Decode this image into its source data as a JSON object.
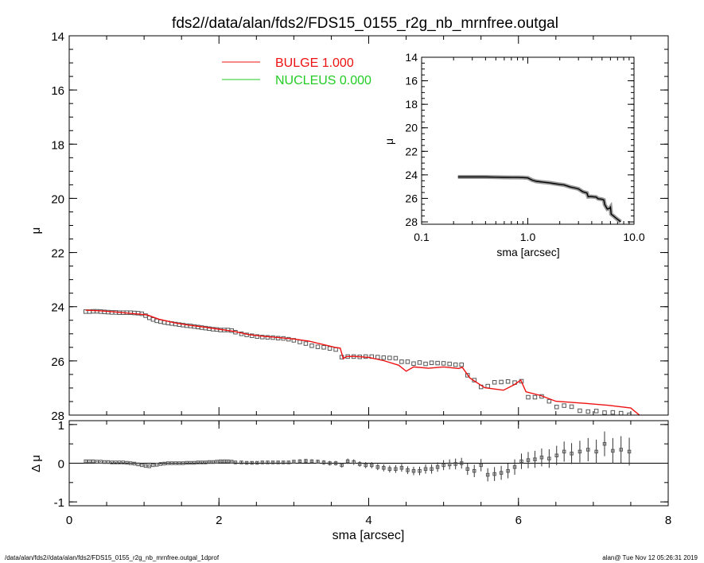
{
  "title": "fds2//data/alan/fds2/FDS15_0155_r2g_nb_mrnfree.outgal",
  "footer": {
    "left": "/data/alan/fds2//data/alan/fds2/FDS15_0155_r2g_nb_mrnfree.outgal_1dprof",
    "right": "alan@  Tue Nov 12 05:26:31 2019"
  },
  "colors": {
    "bulge": "#ee1111",
    "nucleus": "#22cc22",
    "data": "#555555"
  },
  "chart_data": [
    {
      "id": "main",
      "type": "scatter",
      "xlabel": "",
      "ylabel": "μ",
      "xlim": [
        0,
        8
      ],
      "ylim": [
        28,
        14
      ],
      "inverted_y": true,
      "y_ticks": [
        "14",
        "16",
        "18",
        "20",
        "22",
        "24",
        "26",
        "28"
      ],
      "y_tick_values": [
        14,
        16,
        18,
        20,
        22,
        24,
        26,
        28
      ],
      "legend": [
        {
          "label": "BULGE  1.000",
          "color": "#ee1111"
        },
        {
          "label": "NUCLEUS  0.000",
          "color": "#22cc22"
        }
      ],
      "legend_position": "top-center",
      "series": [
        {
          "name": "data",
          "marker": "square",
          "x": [
            0.22,
            0.27,
            0.32,
            0.37,
            0.42,
            0.47,
            0.52,
            0.57,
            0.62,
            0.67,
            0.72,
            0.77,
            0.82,
            0.87,
            0.92,
            0.97,
            1.02,
            1.07,
            1.12,
            1.17,
            1.22,
            1.27,
            1.32,
            1.37,
            1.42,
            1.47,
            1.52,
            1.57,
            1.62,
            1.67,
            1.72,
            1.77,
            1.82,
            1.87,
            1.92,
            1.97,
            2.02,
            2.07,
            2.12,
            2.17,
            2.22,
            2.3,
            2.37,
            2.44,
            2.51,
            2.58,
            2.65,
            2.72,
            2.79,
            2.86,
            2.93,
            3.0,
            3.08,
            3.16,
            3.24,
            3.32,
            3.4,
            3.48,
            3.56,
            3.64,
            3.72,
            3.8,
            3.88,
            3.96,
            4.04,
            4.12,
            4.2,
            4.28,
            4.36,
            4.44,
            4.52,
            4.6,
            4.68,
            4.76,
            4.84,
            4.92,
            5.0,
            5.08,
            5.16,
            5.24,
            5.32,
            5.41,
            5.5,
            5.59,
            5.68,
            5.77,
            5.86,
            5.95,
            6.04,
            6.13,
            6.22,
            6.31,
            6.41,
            6.51,
            6.61,
            6.71,
            6.82,
            6.93,
            7.04,
            7.15,
            7.26,
            7.37,
            7.48
          ],
          "y": [
            24.18,
            24.18,
            24.17,
            24.17,
            24.18,
            24.19,
            24.2,
            24.21,
            24.21,
            24.22,
            24.22,
            24.22,
            24.22,
            24.23,
            24.24,
            24.26,
            24.33,
            24.41,
            24.47,
            24.52,
            24.55,
            24.58,
            24.6,
            24.62,
            24.64,
            24.66,
            24.68,
            24.7,
            24.71,
            24.73,
            24.75,
            24.77,
            24.79,
            24.81,
            24.83,
            24.84,
            24.86,
            24.86,
            24.86,
            24.88,
            24.94,
            25.0,
            25.04,
            25.07,
            25.1,
            25.12,
            25.13,
            25.14,
            25.16,
            25.17,
            25.2,
            25.24,
            25.3,
            25.36,
            25.44,
            25.48,
            25.5,
            25.54,
            25.58,
            25.86,
            25.84,
            25.84,
            25.85,
            25.84,
            25.84,
            25.86,
            25.88,
            25.89,
            25.9,
            26.03,
            26.03,
            26.1,
            26.06,
            26.11,
            26.07,
            26.08,
            26.09,
            26.11,
            26.14,
            26.14,
            26.53,
            26.71,
            26.96,
            26.93,
            26.79,
            26.78,
            26.76,
            26.8,
            26.75,
            27.34,
            27.34,
            27.31,
            27.49,
            27.7,
            27.65,
            27.69,
            27.84,
            27.87,
            27.85,
            27.91,
            27.9,
            27.93,
            27.99
          ]
        },
        {
          "name": "bulge",
          "color": "#ee1111",
          "x": [
            0.22,
            0.4,
            0.6,
            0.8,
            1.0,
            1.05,
            1.2,
            1.4,
            1.6,
            1.8,
            2.0,
            2.2,
            2.4,
            2.6,
            2.8,
            3.0,
            3.2,
            3.4,
            3.55,
            3.62,
            3.66,
            3.7,
            3.8,
            4.0,
            4.2,
            4.4,
            4.5,
            4.6,
            4.8,
            5.0,
            5.2,
            5.25,
            5.35,
            5.55,
            5.8,
            5.95,
            6.03,
            6.1,
            6.3,
            6.5,
            6.9,
            7.2,
            7.5,
            7.65
          ],
          "y": [
            24.13,
            24.15,
            24.19,
            24.24,
            24.29,
            24.31,
            24.46,
            24.59,
            24.68,
            24.75,
            24.83,
            24.91,
            25.03,
            25.09,
            25.14,
            25.19,
            25.27,
            25.4,
            25.5,
            25.53,
            25.92,
            25.84,
            25.83,
            25.87,
            25.99,
            26.16,
            26.38,
            26.22,
            26.27,
            26.22,
            26.28,
            26.24,
            26.63,
            26.99,
            27.08,
            26.87,
            26.71,
            27.14,
            27.28,
            27.49,
            27.57,
            27.64,
            27.74,
            28.08
          ]
        }
      ]
    },
    {
      "id": "residual",
      "type": "scatter",
      "xlabel": "sma [arcsec]",
      "ylabel": "Δ μ",
      "xlim": [
        0,
        8
      ],
      "ylim": [
        -1.1,
        1.1
      ],
      "x_ticks": [
        "0",
        "2",
        "4",
        "6",
        "8"
      ],
      "x_tick_values": [
        0,
        2,
        4,
        6,
        8
      ],
      "y_ticks": [
        "1",
        "0",
        "-1"
      ],
      "y_tick_values": [
        1,
        0,
        -1
      ],
      "zero_line": true,
      "series": [
        {
          "name": "residual",
          "marker": "square",
          "x": [
            0.22,
            0.27,
            0.32,
            0.37,
            0.42,
            0.47,
            0.52,
            0.57,
            0.62,
            0.67,
            0.72,
            0.77,
            0.82,
            0.87,
            0.92,
            0.97,
            1.02,
            1.07,
            1.12,
            1.17,
            1.22,
            1.27,
            1.32,
            1.37,
            1.42,
            1.47,
            1.52,
            1.57,
            1.62,
            1.67,
            1.72,
            1.77,
            1.82,
            1.87,
            1.92,
            1.97,
            2.02,
            2.07,
            2.12,
            2.17,
            2.22,
            2.3,
            2.37,
            2.44,
            2.51,
            2.58,
            2.65,
            2.72,
            2.79,
            2.86,
            2.93,
            3.0,
            3.08,
            3.16,
            3.24,
            3.32,
            3.4,
            3.48,
            3.56,
            3.64,
            3.72,
            3.8,
            3.88,
            3.96,
            4.04,
            4.12,
            4.2,
            4.28,
            4.36,
            4.44,
            4.52,
            4.6,
            4.68,
            4.76,
            4.84,
            4.92,
            5.0,
            5.08,
            5.16,
            5.24,
            5.32,
            5.41,
            5.5,
            5.59,
            5.68,
            5.77,
            5.86,
            5.95,
            6.04,
            6.13,
            6.22,
            6.31,
            6.41,
            6.51,
            6.61,
            6.71,
            6.82,
            6.93,
            7.04,
            7.15,
            7.26,
            7.37,
            7.48
          ],
          "y": [
            0.05,
            0.05,
            0.05,
            0.04,
            0.04,
            0.03,
            0.03,
            0.02,
            0.02,
            0.02,
            0.02,
            0.01,
            0.0,
            -0.01,
            -0.03,
            -0.05,
            -0.07,
            -0.08,
            -0.05,
            -0.04,
            -0.02,
            -0.01,
            0.0,
            0.0,
            0.0,
            0.0,
            0.0,
            0.01,
            0.01,
            0.01,
            0.02,
            0.02,
            0.02,
            0.03,
            0.03,
            0.04,
            0.05,
            0.05,
            0.05,
            0.04,
            0.02,
            0.02,
            0.01,
            0.01,
            0.01,
            0.02,
            0.02,
            0.02,
            0.02,
            0.02,
            0.02,
            0.04,
            0.05,
            0.06,
            0.05,
            0.04,
            0.02,
            0.0,
            0.0,
            -0.05,
            0.05,
            0.03,
            -0.02,
            -0.05,
            -0.05,
            -0.1,
            -0.12,
            -0.15,
            -0.15,
            -0.12,
            -0.18,
            -0.2,
            -0.2,
            -0.15,
            -0.15,
            -0.1,
            -0.05,
            -0.03,
            -0.02,
            0.0,
            -0.15,
            -0.2,
            -0.05,
            -0.3,
            -0.28,
            -0.25,
            -0.2,
            -0.1,
            0.05,
            0.08,
            0.1,
            0.15,
            0.12,
            0.2,
            0.3,
            0.25,
            0.3,
            0.35,
            0.3,
            0.5,
            0.32,
            0.35,
            0.3
          ],
          "err": [
            0.01,
            0.01,
            0.01,
            0.01,
            0.01,
            0.01,
            0.01,
            0.01,
            0.01,
            0.01,
            0.01,
            0.01,
            0.01,
            0.01,
            0.01,
            0.01,
            0.01,
            0.01,
            0.01,
            0.01,
            0.01,
            0.01,
            0.01,
            0.01,
            0.01,
            0.01,
            0.01,
            0.01,
            0.01,
            0.01,
            0.02,
            0.02,
            0.02,
            0.02,
            0.02,
            0.02,
            0.02,
            0.02,
            0.02,
            0.02,
            0.02,
            0.03,
            0.03,
            0.03,
            0.03,
            0.03,
            0.03,
            0.04,
            0.04,
            0.04,
            0.04,
            0.04,
            0.05,
            0.05,
            0.05,
            0.05,
            0.06,
            0.06,
            0.06,
            0.06,
            0.07,
            0.07,
            0.07,
            0.08,
            0.08,
            0.08,
            0.09,
            0.09,
            0.1,
            0.1,
            0.1,
            0.11,
            0.11,
            0.12,
            0.12,
            0.12,
            0.13,
            0.13,
            0.14,
            0.14,
            0.15,
            0.16,
            0.16,
            0.17,
            0.18,
            0.18,
            0.19,
            0.2,
            0.2,
            0.21,
            0.22,
            0.23,
            0.24,
            0.25,
            0.26,
            0.27,
            0.28,
            0.3,
            0.31,
            0.32,
            0.33,
            0.35,
            0.36
          ]
        }
      ]
    },
    {
      "id": "inset",
      "type": "line",
      "xlabel": "sma [arcsec]",
      "ylabel": "μ",
      "xscale": "log",
      "xlim": [
        0.1,
        10.0
      ],
      "ylim": [
        28.2,
        14
      ],
      "x_ticks": [
        "0.1",
        "1.0",
        "10.0"
      ],
      "x_tick_values": [
        0.1,
        1.0,
        10.0
      ],
      "y_ticks": [
        "14",
        "16",
        "18",
        "20",
        "22",
        "24",
        "26",
        "28"
      ],
      "y_tick_values": [
        14,
        16,
        18,
        20,
        22,
        24,
        26,
        28
      ],
      "series": [
        {
          "name": "profile",
          "x": [
            0.22,
            0.3,
            0.4,
            0.5,
            0.6,
            0.7,
            0.8,
            0.9,
            1.0,
            1.1,
            1.2,
            1.4,
            1.6,
            1.8,
            2.0,
            2.2,
            2.5,
            2.8,
            3.0,
            3.3,
            3.6,
            3.7,
            3.9,
            4.1,
            4.4,
            4.6,
            5.0,
            5.2,
            5.3,
            5.6,
            5.9,
            6.0,
            6.1,
            6.4,
            6.8,
            7.2,
            7.5
          ],
          "y": [
            24.18,
            24.18,
            24.18,
            24.2,
            24.21,
            24.22,
            24.22,
            24.23,
            24.26,
            24.45,
            24.55,
            24.62,
            24.68,
            24.75,
            24.81,
            24.86,
            25.03,
            25.12,
            25.2,
            25.44,
            25.54,
            25.86,
            25.84,
            25.86,
            25.89,
            26.03,
            26.08,
            26.14,
            26.53,
            26.9,
            26.85,
            26.75,
            27.34,
            27.49,
            27.69,
            27.87,
            27.99
          ]
        }
      ]
    }
  ]
}
